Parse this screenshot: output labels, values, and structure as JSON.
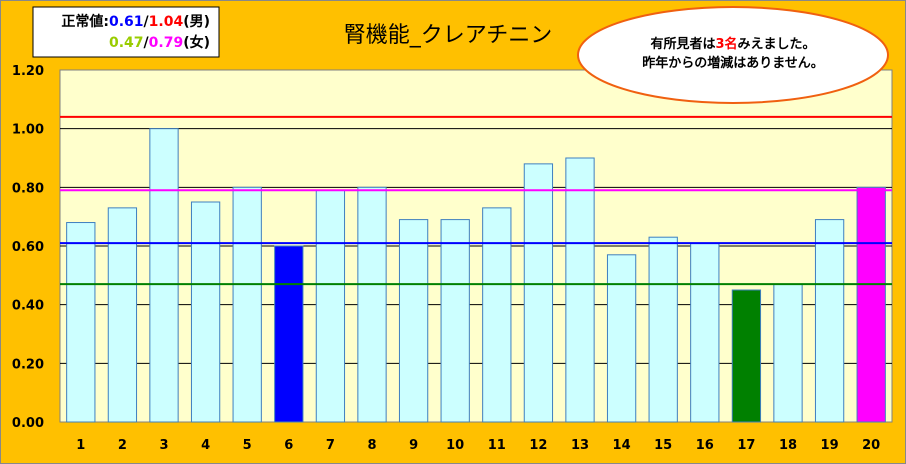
{
  "chart_data": {
    "type": "bar",
    "title": "腎機能_クレアチニン",
    "categories": [
      "1",
      "2",
      "3",
      "4",
      "5",
      "6",
      "7",
      "8",
      "9",
      "10",
      "11",
      "12",
      "13",
      "14",
      "15",
      "16",
      "17",
      "18",
      "19",
      "20"
    ],
    "values": [
      0.68,
      0.73,
      1.0,
      0.75,
      0.8,
      0.6,
      0.79,
      0.8,
      0.69,
      0.69,
      0.73,
      0.88,
      0.9,
      0.57,
      0.63,
      0.61,
      0.45,
      0.47,
      0.69,
      0.8
    ],
    "highlight": {
      "6": "#0000ff",
      "17": "#008000",
      "20": "#ff00ff"
    },
    "bar_color": "#ccffff",
    "ylim": [
      0,
      1.2
    ],
    "yticks": [
      "0.00",
      "0.20",
      "0.40",
      "0.60",
      "0.80",
      "1.00",
      "1.20"
    ],
    "grid": true,
    "reference_lines": [
      {
        "value": 1.04,
        "color": "#ff0000"
      },
      {
        "value": 0.79,
        "color": "#ff00ff"
      },
      {
        "value": 0.61,
        "color": "#0000ff"
      },
      {
        "value": 0.47,
        "color": "#008000"
      }
    ],
    "background": "#ffc000",
    "plot_background": "#ffffcc"
  },
  "legend": {
    "line1": {
      "prefix": "正常値:",
      "v1": "0.61",
      "sep": "/",
      "v2": "1.04",
      "suffix": "(男)"
    },
    "line2": {
      "v1": "0.47",
      "sep": "/",
      "v2": "0.79",
      "suffix": "(女)"
    }
  },
  "note": {
    "line1_a": "有所見者は",
    "line1_b": "3名",
    "line1_c": "みえました。",
    "line2": "昨年からの増減はありません。"
  }
}
